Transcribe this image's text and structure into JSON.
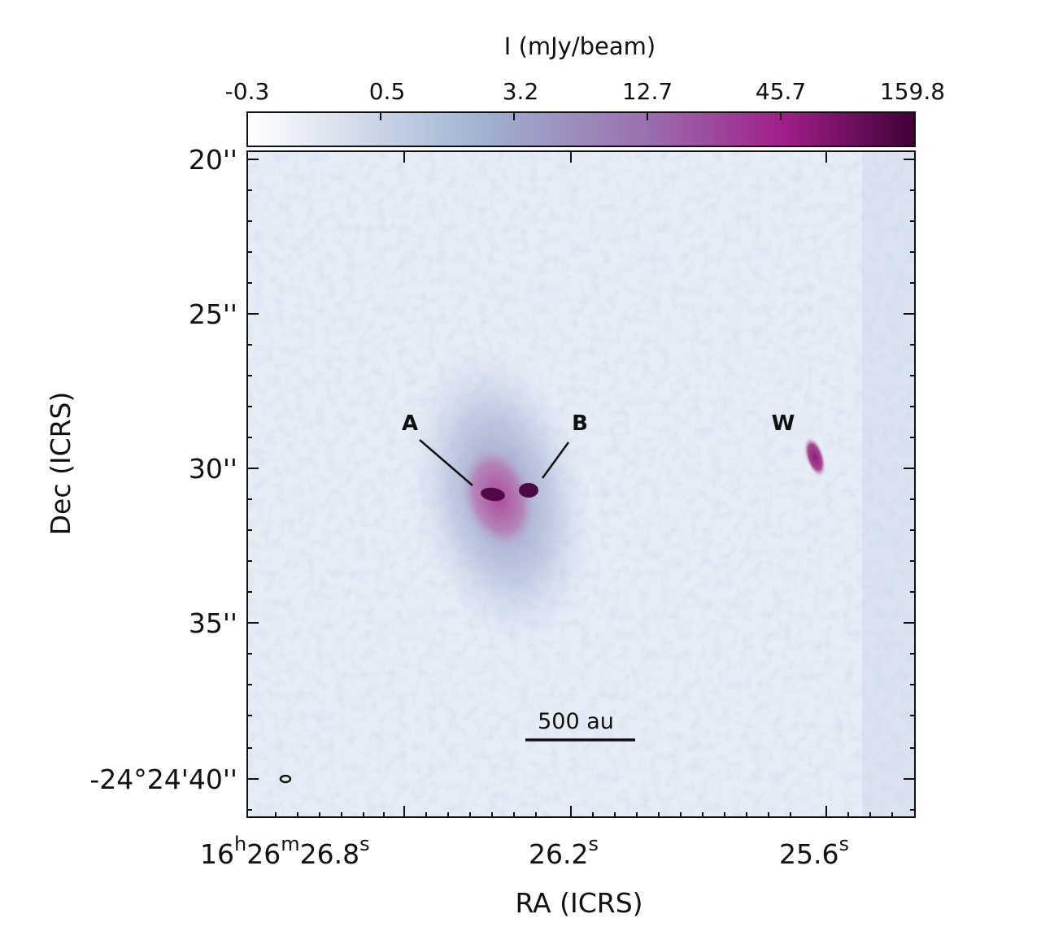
{
  "colorbar": {
    "label": "I (mJy/beam)",
    "ticks": [
      "-0.3",
      "0.5",
      "3.2",
      "12.7",
      "45.7",
      "159.8"
    ],
    "colors": [
      "#ffffff",
      "#9fb3d2",
      "#9a6fae",
      "#a21f8a",
      "#3f0238"
    ]
  },
  "axes": {
    "xlabel": "RA (ICRS)",
    "ylabel": "Dec (ICRS)",
    "yticks": [
      "20''",
      "25''",
      "30''",
      "35''",
      "-24°24'40''"
    ],
    "xticks": [
      {
        "h": "16",
        "m": "26",
        "s": "26.8",
        "full": true
      },
      {
        "s": "26.2",
        "full": false
      },
      {
        "s": "25.6",
        "full": false
      }
    ],
    "x_units": {
      "h": "h",
      "m": "m",
      "s": "s"
    }
  },
  "sources": [
    {
      "id": "A",
      "label": "A"
    },
    {
      "id": "B",
      "label": "B"
    },
    {
      "id": "W",
      "label": "W"
    }
  ],
  "scalebar": {
    "label": "500 au"
  }
}
